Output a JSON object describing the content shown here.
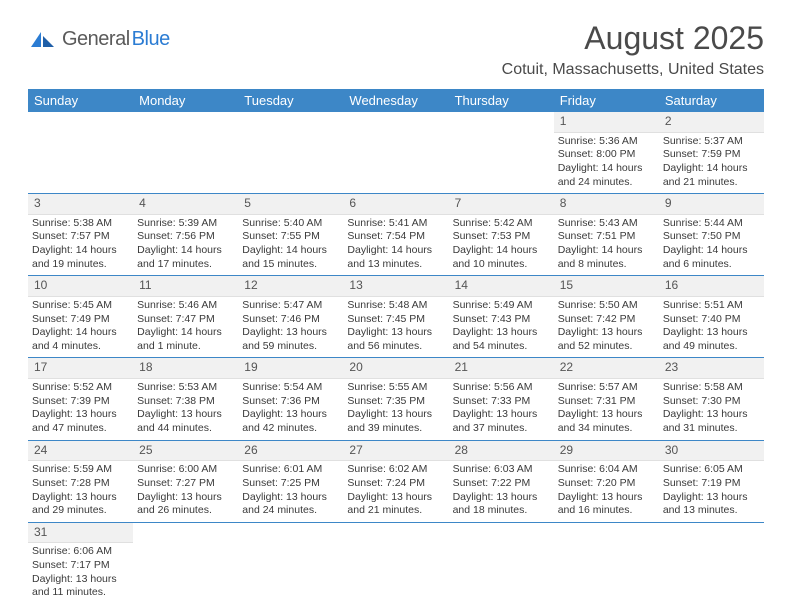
{
  "brand": {
    "part1": "General",
    "part2": "Blue"
  },
  "title": "August 2025",
  "location": "Cotuit, Massachusetts, United States",
  "colors": {
    "header_bg": "#3d87c7",
    "header_text": "#ffffff",
    "day_num_bg": "#f1f1f1",
    "text": "#3a3a3a",
    "brand_blue": "#2b7cd3"
  },
  "weekdays": [
    "Sunday",
    "Monday",
    "Tuesday",
    "Wednesday",
    "Thursday",
    "Friday",
    "Saturday"
  ],
  "weeks": [
    [
      null,
      null,
      null,
      null,
      null,
      {
        "n": "1",
        "rise": "Sunrise: 5:36 AM",
        "set": "Sunset: 8:00 PM",
        "dl": "Daylight: 14 hours and 24 minutes."
      },
      {
        "n": "2",
        "rise": "Sunrise: 5:37 AM",
        "set": "Sunset: 7:59 PM",
        "dl": "Daylight: 14 hours and 21 minutes."
      }
    ],
    [
      {
        "n": "3",
        "rise": "Sunrise: 5:38 AM",
        "set": "Sunset: 7:57 PM",
        "dl": "Daylight: 14 hours and 19 minutes."
      },
      {
        "n": "4",
        "rise": "Sunrise: 5:39 AM",
        "set": "Sunset: 7:56 PM",
        "dl": "Daylight: 14 hours and 17 minutes."
      },
      {
        "n": "5",
        "rise": "Sunrise: 5:40 AM",
        "set": "Sunset: 7:55 PM",
        "dl": "Daylight: 14 hours and 15 minutes."
      },
      {
        "n": "6",
        "rise": "Sunrise: 5:41 AM",
        "set": "Sunset: 7:54 PM",
        "dl": "Daylight: 14 hours and 13 minutes."
      },
      {
        "n": "7",
        "rise": "Sunrise: 5:42 AM",
        "set": "Sunset: 7:53 PM",
        "dl": "Daylight: 14 hours and 10 minutes."
      },
      {
        "n": "8",
        "rise": "Sunrise: 5:43 AM",
        "set": "Sunset: 7:51 PM",
        "dl": "Daylight: 14 hours and 8 minutes."
      },
      {
        "n": "9",
        "rise": "Sunrise: 5:44 AM",
        "set": "Sunset: 7:50 PM",
        "dl": "Daylight: 14 hours and 6 minutes."
      }
    ],
    [
      {
        "n": "10",
        "rise": "Sunrise: 5:45 AM",
        "set": "Sunset: 7:49 PM",
        "dl": "Daylight: 14 hours and 4 minutes."
      },
      {
        "n": "11",
        "rise": "Sunrise: 5:46 AM",
        "set": "Sunset: 7:47 PM",
        "dl": "Daylight: 14 hours and 1 minute."
      },
      {
        "n": "12",
        "rise": "Sunrise: 5:47 AM",
        "set": "Sunset: 7:46 PM",
        "dl": "Daylight: 13 hours and 59 minutes."
      },
      {
        "n": "13",
        "rise": "Sunrise: 5:48 AM",
        "set": "Sunset: 7:45 PM",
        "dl": "Daylight: 13 hours and 56 minutes."
      },
      {
        "n": "14",
        "rise": "Sunrise: 5:49 AM",
        "set": "Sunset: 7:43 PM",
        "dl": "Daylight: 13 hours and 54 minutes."
      },
      {
        "n": "15",
        "rise": "Sunrise: 5:50 AM",
        "set": "Sunset: 7:42 PM",
        "dl": "Daylight: 13 hours and 52 minutes."
      },
      {
        "n": "16",
        "rise": "Sunrise: 5:51 AM",
        "set": "Sunset: 7:40 PM",
        "dl": "Daylight: 13 hours and 49 minutes."
      }
    ],
    [
      {
        "n": "17",
        "rise": "Sunrise: 5:52 AM",
        "set": "Sunset: 7:39 PM",
        "dl": "Daylight: 13 hours and 47 minutes."
      },
      {
        "n": "18",
        "rise": "Sunrise: 5:53 AM",
        "set": "Sunset: 7:38 PM",
        "dl": "Daylight: 13 hours and 44 minutes."
      },
      {
        "n": "19",
        "rise": "Sunrise: 5:54 AM",
        "set": "Sunset: 7:36 PM",
        "dl": "Daylight: 13 hours and 42 minutes."
      },
      {
        "n": "20",
        "rise": "Sunrise: 5:55 AM",
        "set": "Sunset: 7:35 PM",
        "dl": "Daylight: 13 hours and 39 minutes."
      },
      {
        "n": "21",
        "rise": "Sunrise: 5:56 AM",
        "set": "Sunset: 7:33 PM",
        "dl": "Daylight: 13 hours and 37 minutes."
      },
      {
        "n": "22",
        "rise": "Sunrise: 5:57 AM",
        "set": "Sunset: 7:31 PM",
        "dl": "Daylight: 13 hours and 34 minutes."
      },
      {
        "n": "23",
        "rise": "Sunrise: 5:58 AM",
        "set": "Sunset: 7:30 PM",
        "dl": "Daylight: 13 hours and 31 minutes."
      }
    ],
    [
      {
        "n": "24",
        "rise": "Sunrise: 5:59 AM",
        "set": "Sunset: 7:28 PM",
        "dl": "Daylight: 13 hours and 29 minutes."
      },
      {
        "n": "25",
        "rise": "Sunrise: 6:00 AM",
        "set": "Sunset: 7:27 PM",
        "dl": "Daylight: 13 hours and 26 minutes."
      },
      {
        "n": "26",
        "rise": "Sunrise: 6:01 AM",
        "set": "Sunset: 7:25 PM",
        "dl": "Daylight: 13 hours and 24 minutes."
      },
      {
        "n": "27",
        "rise": "Sunrise: 6:02 AM",
        "set": "Sunset: 7:24 PM",
        "dl": "Daylight: 13 hours and 21 minutes."
      },
      {
        "n": "28",
        "rise": "Sunrise: 6:03 AM",
        "set": "Sunset: 7:22 PM",
        "dl": "Daylight: 13 hours and 18 minutes."
      },
      {
        "n": "29",
        "rise": "Sunrise: 6:04 AM",
        "set": "Sunset: 7:20 PM",
        "dl": "Daylight: 13 hours and 16 minutes."
      },
      {
        "n": "30",
        "rise": "Sunrise: 6:05 AM",
        "set": "Sunset: 7:19 PM",
        "dl": "Daylight: 13 hours and 13 minutes."
      }
    ],
    [
      {
        "n": "31",
        "rise": "Sunrise: 6:06 AM",
        "set": "Sunset: 7:17 PM",
        "dl": "Daylight: 13 hours and 11 minutes."
      },
      null,
      null,
      null,
      null,
      null,
      null
    ]
  ]
}
